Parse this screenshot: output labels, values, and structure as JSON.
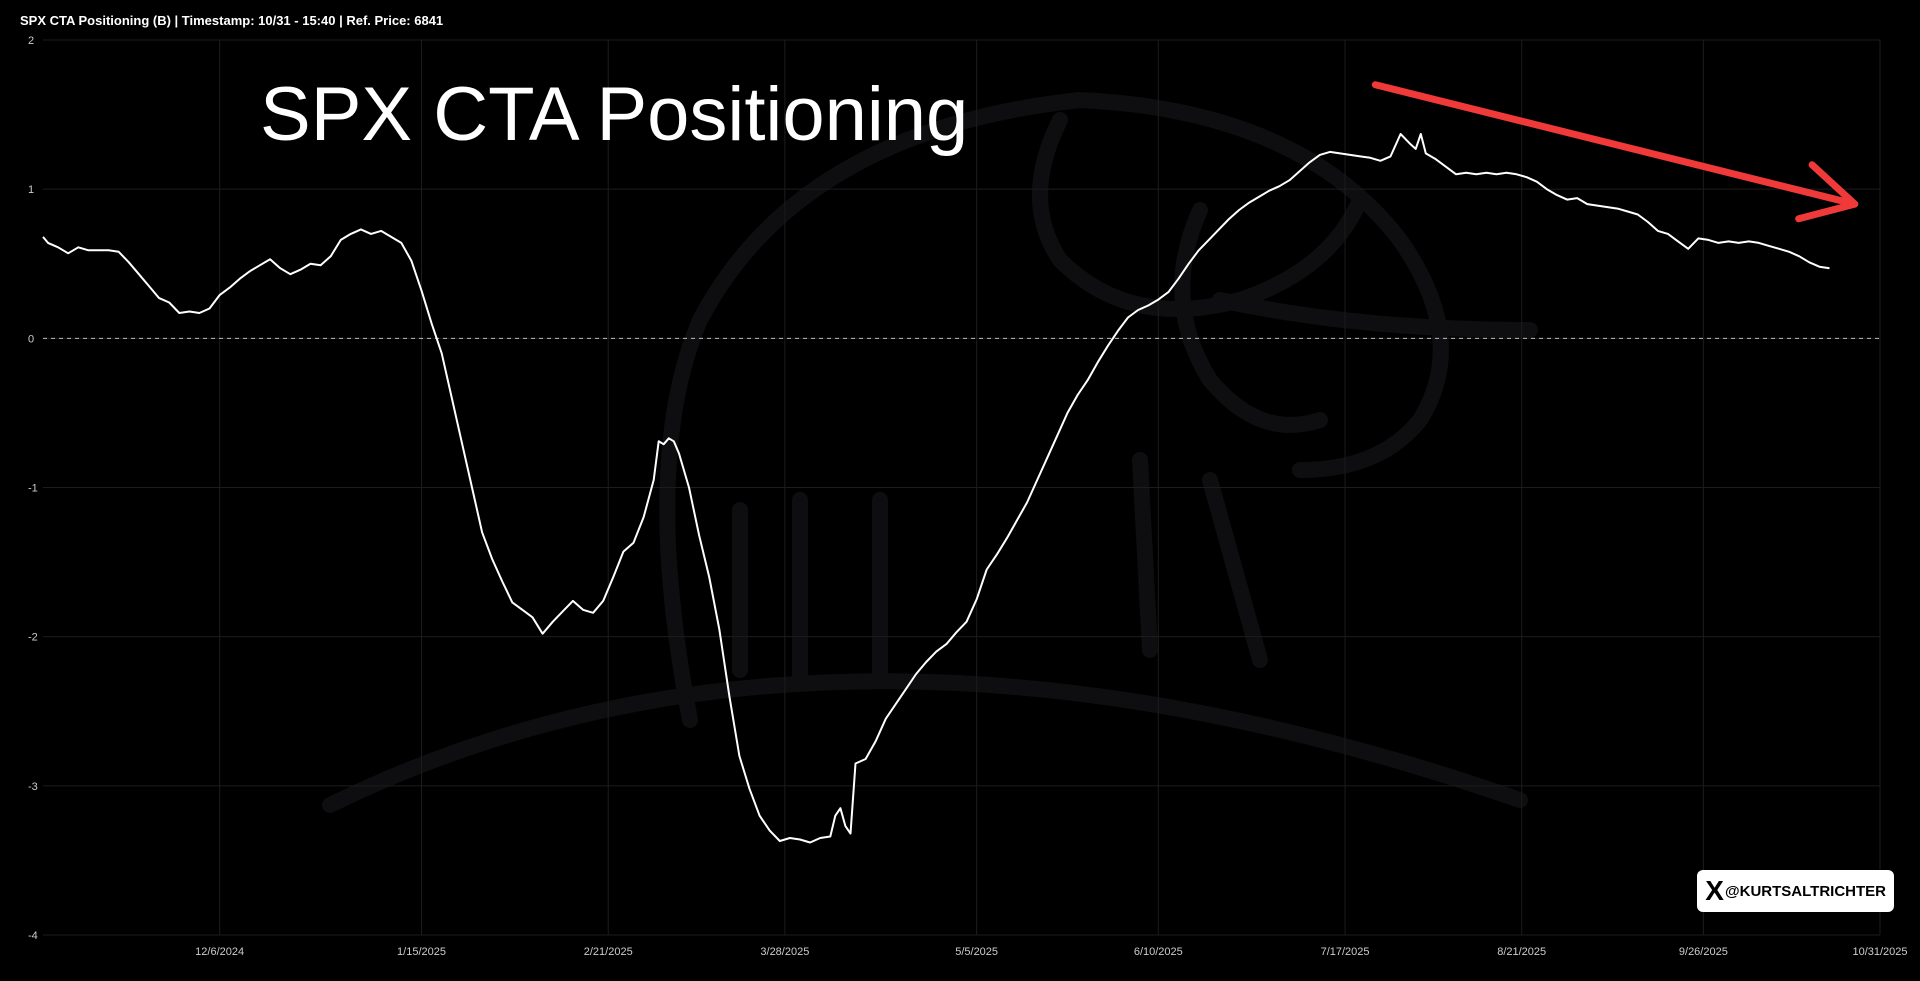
{
  "header": {
    "title": "SPX CTA Positioning (B) | Timestamp: 10/31 - 15:40  | Ref. Price: 6841"
  },
  "overlay_title": "SPX CTA Positioning",
  "badge": {
    "icon": "x-logo-icon",
    "glyph": "X",
    "handle": "@KURTSALTRICHTER"
  },
  "colors": {
    "background": "#000000",
    "line": "#ffffff",
    "arrow": "#f03a3a",
    "grid": "#1c1c1c",
    "zero_line": "#bbbbbb"
  },
  "chart_data": {
    "type": "line",
    "title": "SPX CTA Positioning",
    "ylim": [
      -4,
      2
    ],
    "xlim": [
      "2024-11-01",
      "2025-10-31"
    ],
    "yticks": [
      "2",
      "1",
      "0",
      "-1",
      "-2",
      "-3",
      "-4"
    ],
    "xticks": [
      {
        "date": "2024-12-06",
        "label": "12/6/2024"
      },
      {
        "date": "2025-01-15",
        "label": "1/15/2025"
      },
      {
        "date": "2025-02-21",
        "label": "2/21/2025"
      },
      {
        "date": "2025-03-28",
        "label": "3/28/2025"
      },
      {
        "date": "2025-05-05",
        "label": "5/5/2025"
      },
      {
        "date": "2025-06-10",
        "label": "6/10/2025"
      },
      {
        "date": "2025-07-17",
        "label": "7/17/2025"
      },
      {
        "date": "2025-08-21",
        "label": "8/21/2025"
      },
      {
        "date": "2025-09-26",
        "label": "9/26/2025"
      },
      {
        "date": "2025-10-31",
        "label": "10/31/2025"
      }
    ],
    "reference_line": 0,
    "grid": true,
    "series": [
      {
        "values": [
          [
            "2024-11-01",
            0.68
          ],
          [
            "2024-11-02",
            0.64
          ],
          [
            "2024-11-04",
            0.61
          ],
          [
            "2024-11-06",
            0.57
          ],
          [
            "2024-11-08",
            0.61
          ],
          [
            "2024-11-10",
            0.59
          ],
          [
            "2024-11-12",
            0.59
          ],
          [
            "2024-11-14",
            0.59
          ],
          [
            "2024-11-16",
            0.58
          ],
          [
            "2024-11-18",
            0.51
          ],
          [
            "2024-11-20",
            0.43
          ],
          [
            "2024-11-22",
            0.35
          ],
          [
            "2024-11-24",
            0.27
          ],
          [
            "2024-11-26",
            0.24
          ],
          [
            "2024-11-28",
            0.17
          ],
          [
            "2024-11-30",
            0.18
          ],
          [
            "2024-12-02",
            0.17
          ],
          [
            "2024-12-04",
            0.2
          ],
          [
            "2024-12-06",
            0.29
          ],
          [
            "2024-12-08",
            0.34
          ],
          [
            "2024-12-10",
            0.4
          ],
          [
            "2024-12-12",
            0.45
          ],
          [
            "2024-12-14",
            0.49
          ],
          [
            "2024-12-16",
            0.53
          ],
          [
            "2024-12-18",
            0.47
          ],
          [
            "2024-12-20",
            0.43
          ],
          [
            "2024-12-22",
            0.46
          ],
          [
            "2024-12-24",
            0.5
          ],
          [
            "2024-12-26",
            0.49
          ],
          [
            "2024-12-28",
            0.55
          ],
          [
            "2024-12-30",
            0.66
          ],
          [
            "2025-01-01",
            0.7
          ],
          [
            "2025-01-03",
            0.73
          ],
          [
            "2025-01-05",
            0.7
          ],
          [
            "2025-01-07",
            0.72
          ],
          [
            "2025-01-09",
            0.68
          ],
          [
            "2025-01-11",
            0.64
          ],
          [
            "2025-01-13",
            0.52
          ],
          [
            "2025-01-15",
            0.32
          ],
          [
            "2025-01-17",
            0.1
          ],
          [
            "2025-01-19",
            -0.1
          ],
          [
            "2025-01-21",
            -0.4
          ],
          [
            "2025-01-23",
            -0.7
          ],
          [
            "2025-01-25",
            -1.0
          ],
          [
            "2025-01-27",
            -1.3
          ],
          [
            "2025-01-29",
            -1.48
          ],
          [
            "2025-01-31",
            -1.63
          ],
          [
            "2025-02-02",
            -1.77
          ],
          [
            "2025-02-04",
            -1.82
          ],
          [
            "2025-02-06",
            -1.87
          ],
          [
            "2025-02-08",
            -1.98
          ],
          [
            "2025-02-10",
            -1.9
          ],
          [
            "2025-02-12",
            -1.83
          ],
          [
            "2025-02-14",
            -1.76
          ],
          [
            "2025-02-16",
            -1.82
          ],
          [
            "2025-02-18",
            -1.84
          ],
          [
            "2025-02-20",
            -1.76
          ],
          [
            "2025-02-22",
            -1.6
          ],
          [
            "2025-02-24",
            -1.43
          ],
          [
            "2025-02-26",
            -1.37
          ],
          [
            "2025-02-28",
            -1.2
          ],
          [
            "2025-03-02",
            -0.95
          ],
          [
            "2025-03-03",
            -0.69
          ],
          [
            "2025-03-04",
            -0.71
          ],
          [
            "2025-03-05",
            -0.67
          ],
          [
            "2025-03-06",
            -0.69
          ],
          [
            "2025-03-07",
            -0.77
          ],
          [
            "2025-03-09",
            -1.0
          ],
          [
            "2025-03-11",
            -1.32
          ],
          [
            "2025-03-13",
            -1.6
          ],
          [
            "2025-03-15",
            -1.95
          ],
          [
            "2025-03-17",
            -2.4
          ],
          [
            "2025-03-19",
            -2.8
          ],
          [
            "2025-03-21",
            -3.02
          ],
          [
            "2025-03-23",
            -3.2
          ],
          [
            "2025-03-25",
            -3.3
          ],
          [
            "2025-03-27",
            -3.37
          ],
          [
            "2025-03-29",
            -3.35
          ],
          [
            "2025-03-31",
            -3.36
          ],
          [
            "2025-04-02",
            -3.38
          ],
          [
            "2025-04-04",
            -3.35
          ],
          [
            "2025-04-06",
            -3.34
          ],
          [
            "2025-04-07",
            -3.2
          ],
          [
            "2025-04-08",
            -3.15
          ],
          [
            "2025-04-09",
            -3.27
          ],
          [
            "2025-04-10",
            -3.32
          ],
          [
            "2025-04-11",
            -2.85
          ],
          [
            "2025-04-13",
            -2.82
          ],
          [
            "2025-04-15",
            -2.7
          ],
          [
            "2025-04-17",
            -2.55
          ],
          [
            "2025-04-19",
            -2.45
          ],
          [
            "2025-04-21",
            -2.35
          ],
          [
            "2025-04-23",
            -2.25
          ],
          [
            "2025-04-25",
            -2.17
          ],
          [
            "2025-04-27",
            -2.1
          ],
          [
            "2025-04-29",
            -2.05
          ],
          [
            "2025-05-01",
            -1.97
          ],
          [
            "2025-05-03",
            -1.9
          ],
          [
            "2025-05-05",
            -1.75
          ],
          [
            "2025-05-07",
            -1.55
          ],
          [
            "2025-05-09",
            -1.45
          ],
          [
            "2025-05-11",
            -1.34
          ],
          [
            "2025-05-13",
            -1.22
          ],
          [
            "2025-05-15",
            -1.1
          ],
          [
            "2025-05-17",
            -0.95
          ],
          [
            "2025-05-19",
            -0.8
          ],
          [
            "2025-05-21",
            -0.65
          ],
          [
            "2025-05-23",
            -0.5
          ],
          [
            "2025-05-25",
            -0.38
          ],
          [
            "2025-05-27",
            -0.28
          ],
          [
            "2025-05-29",
            -0.16
          ],
          [
            "2025-05-31",
            -0.05
          ],
          [
            "2025-06-02",
            0.05
          ],
          [
            "2025-06-04",
            0.14
          ],
          [
            "2025-06-06",
            0.19
          ],
          [
            "2025-06-08",
            0.22
          ],
          [
            "2025-06-10",
            0.26
          ],
          [
            "2025-06-12",
            0.31
          ],
          [
            "2025-06-14",
            0.4
          ],
          [
            "2025-06-16",
            0.5
          ],
          [
            "2025-06-18",
            0.59
          ],
          [
            "2025-06-20",
            0.66
          ],
          [
            "2025-06-22",
            0.73
          ],
          [
            "2025-06-24",
            0.8
          ],
          [
            "2025-06-26",
            0.86
          ],
          [
            "2025-06-28",
            0.91
          ],
          [
            "2025-06-30",
            0.95
          ],
          [
            "2025-07-02",
            0.99
          ],
          [
            "2025-07-04",
            1.02
          ],
          [
            "2025-07-06",
            1.06
          ],
          [
            "2025-07-08",
            1.12
          ],
          [
            "2025-07-10",
            1.18
          ],
          [
            "2025-07-12",
            1.23
          ],
          [
            "2025-07-14",
            1.25
          ],
          [
            "2025-07-16",
            1.24
          ],
          [
            "2025-07-18",
            1.23
          ],
          [
            "2025-07-20",
            1.22
          ],
          [
            "2025-07-22",
            1.21
          ],
          [
            "2025-07-24",
            1.19
          ],
          [
            "2025-07-26",
            1.22
          ],
          [
            "2025-07-28",
            1.37
          ],
          [
            "2025-07-30",
            1.3
          ],
          [
            "2025-07-31",
            1.27
          ],
          [
            "2025-08-01",
            1.37
          ],
          [
            "2025-08-02",
            1.24
          ],
          [
            "2025-08-04",
            1.2
          ],
          [
            "2025-08-06",
            1.15
          ],
          [
            "2025-08-08",
            1.1
          ],
          [
            "2025-08-10",
            1.11
          ],
          [
            "2025-08-12",
            1.1
          ],
          [
            "2025-08-14",
            1.11
          ],
          [
            "2025-08-16",
            1.1
          ],
          [
            "2025-08-18",
            1.11
          ],
          [
            "2025-08-20",
            1.1
          ],
          [
            "2025-08-22",
            1.08
          ],
          [
            "2025-08-24",
            1.05
          ],
          [
            "2025-08-26",
            1.0
          ],
          [
            "2025-08-28",
            0.96
          ],
          [
            "2025-08-30",
            0.93
          ],
          [
            "2025-09-01",
            0.94
          ],
          [
            "2025-09-03",
            0.9
          ],
          [
            "2025-09-05",
            0.89
          ],
          [
            "2025-09-07",
            0.88
          ],
          [
            "2025-09-09",
            0.87
          ],
          [
            "2025-09-11",
            0.85
          ],
          [
            "2025-09-13",
            0.83
          ],
          [
            "2025-09-15",
            0.78
          ],
          [
            "2025-09-17",
            0.72
          ],
          [
            "2025-09-19",
            0.7
          ],
          [
            "2025-09-21",
            0.65
          ],
          [
            "2025-09-23",
            0.6
          ],
          [
            "2025-09-25",
            0.67
          ],
          [
            "2025-09-27",
            0.66
          ],
          [
            "2025-09-29",
            0.64
          ],
          [
            "2025-10-01",
            0.65
          ],
          [
            "2025-10-03",
            0.64
          ],
          [
            "2025-10-05",
            0.65
          ],
          [
            "2025-10-07",
            0.64
          ],
          [
            "2025-10-09",
            0.62
          ],
          [
            "2025-10-11",
            0.6
          ],
          [
            "2025-10-13",
            0.58
          ],
          [
            "2025-10-15",
            0.55
          ],
          [
            "2025-10-17",
            0.51
          ],
          [
            "2025-10-19",
            0.48
          ],
          [
            "2025-10-21",
            0.47
          ]
        ]
      }
    ],
    "annotations": [
      {
        "type": "arrow",
        "description": "red arrow",
        "from": [
          "2025-07-23",
          1.7
        ],
        "to": [
          "2025-10-26",
          0.9
        ]
      }
    ]
  }
}
